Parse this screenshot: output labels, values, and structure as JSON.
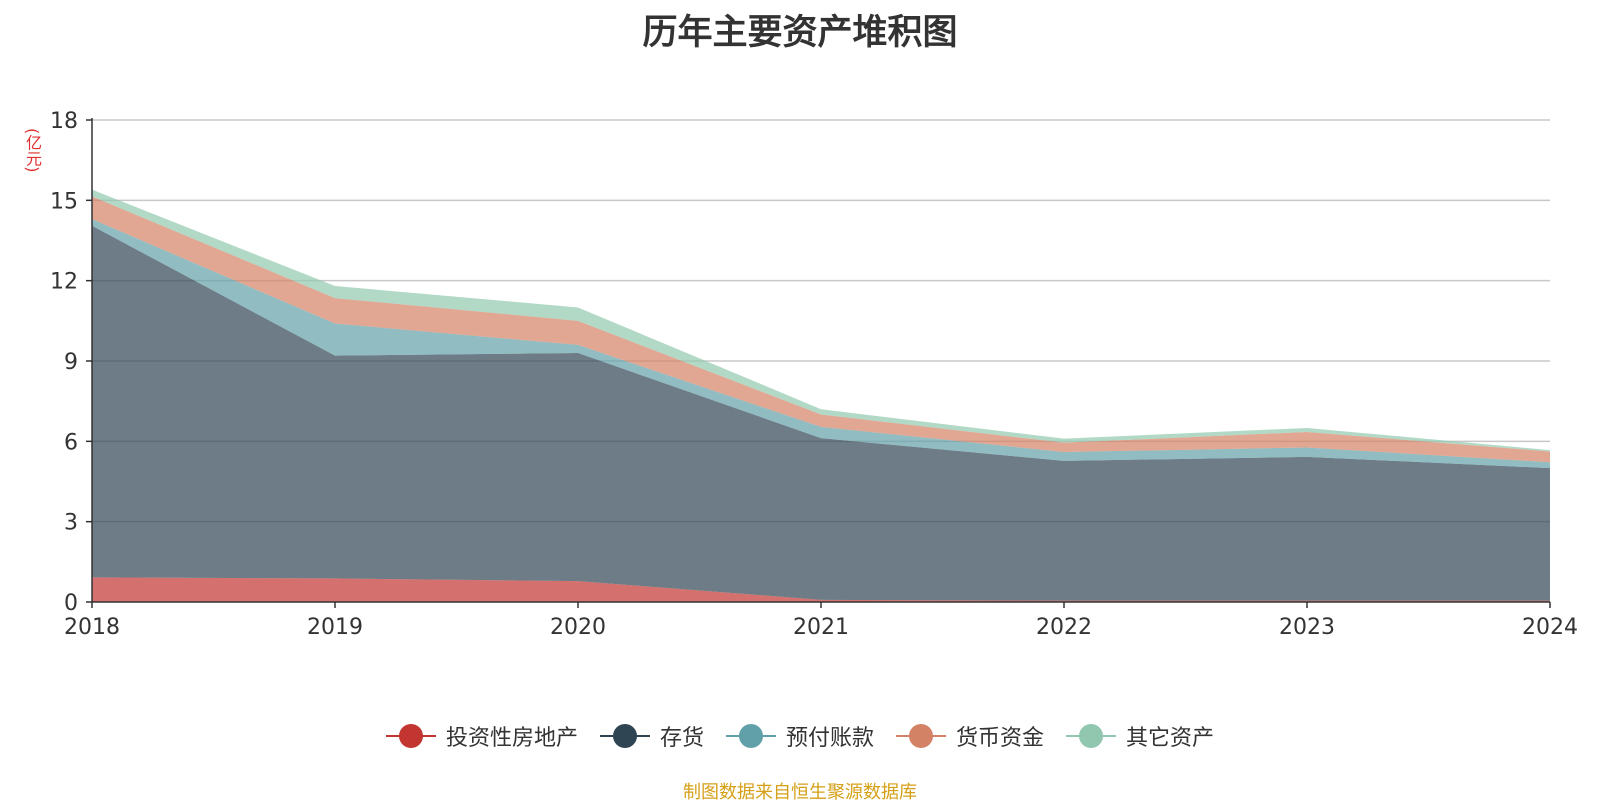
{
  "chart_data": {
    "type": "area",
    "stacked": true,
    "title": "历年主要资产堆积图",
    "unit_label": "(亿元)",
    "x": [
      "2018",
      "2019",
      "2020",
      "2021",
      "2022",
      "2023",
      "2024"
    ],
    "ylim": [
      0,
      18
    ],
    "yticks": [
      "0",
      "3",
      "6",
      "9",
      "12",
      "15",
      "18"
    ],
    "grid": true,
    "legend_position": "bottom-center",
    "series": [
      {
        "name": "投资性房地产",
        "color": "#c23531",
        "values": [
          0.92,
          0.88,
          0.78,
          0.08,
          0.05,
          0.05,
          0.05
        ]
      },
      {
        "name": "存货",
        "color": "#2f4554",
        "values": [
          13.13,
          8.32,
          8.52,
          6.04,
          5.22,
          5.37,
          4.95
        ]
      },
      {
        "name": "预付账款",
        "color": "#61a0a8",
        "values": [
          0.25,
          1.2,
          0.3,
          0.42,
          0.33,
          0.35,
          0.22
        ]
      },
      {
        "name": "货币资金",
        "color": "#d48265",
        "values": [
          0.85,
          0.95,
          0.9,
          0.46,
          0.35,
          0.58,
          0.4
        ]
      },
      {
        "name": "其它资产",
        "color": "#91c7ae",
        "values": [
          0.25,
          0.45,
          0.5,
          0.2,
          0.15,
          0.15,
          0.05
        ]
      }
    ]
  },
  "footer": {
    "source": "制图数据来自恒生聚源数据库"
  }
}
